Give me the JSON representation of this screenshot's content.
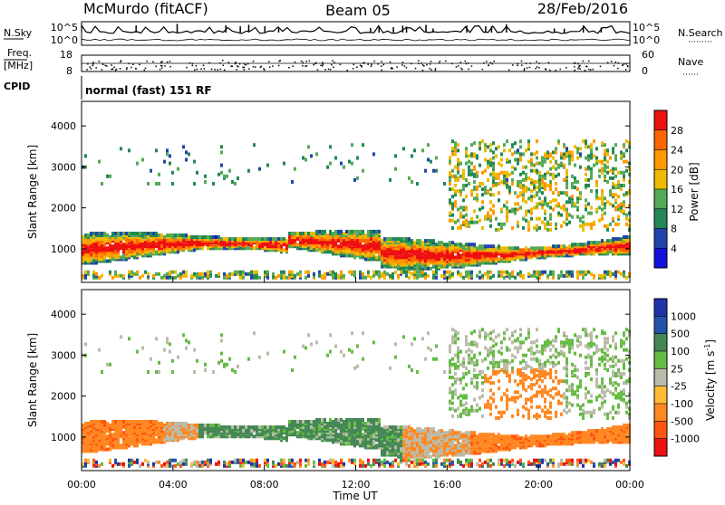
{
  "header": {
    "station": "McMurdo (fitACF)",
    "beam": "Beam 05",
    "date": "28/Feb/2016"
  },
  "status_panel": {
    "left_label_top": "N.Sky",
    "left_label_mid_1": "Freq.",
    "left_label_mid_2": "[MHz]",
    "left_label_bottom": "CPID",
    "right_label_top": "N.Search",
    "right_label_mid": "Nave",
    "left_ticks_top": [
      "10^5",
      "10^0"
    ],
    "right_ticks_top": [
      "10^5",
      "10^0"
    ],
    "left_ticks_freq": [
      "18",
      "8"
    ],
    "right_ticks_nave": [
      "60",
      "0"
    ],
    "cpid_text": "normal (fast) 151 RF"
  },
  "chart_data": [
    {
      "type": "heatmap",
      "name": "power",
      "ylabel": "Slant Range [km]",
      "y_ticks": [
        1000,
        2000,
        3000,
        4000
      ],
      "ylim": [
        180,
        4600
      ],
      "colorbar": {
        "label": "Power [dB]",
        "ticks": [
          "28",
          "24",
          "20",
          "16",
          "12",
          "8",
          "4"
        ],
        "colors": [
          "#ee1111",
          "#ff6600",
          "#ff9900",
          "#eebb00",
          "#55aa55",
          "#228855",
          "#2244aa",
          "#1111dd"
        ]
      }
    },
    {
      "type": "heatmap",
      "name": "velocity",
      "ylabel": "Slant Range [km]",
      "xlabel": "Time UT",
      "y_ticks": [
        1000,
        2000,
        3000,
        4000
      ],
      "ylim": [
        180,
        4600
      ],
      "x_ticks": [
        "00:00",
        "04:00",
        "08:00",
        "12:00",
        "16:00",
        "20:00",
        "00:00"
      ],
      "xlim_hours": [
        0,
        24
      ],
      "colorbar": {
        "label": "Velocity [m s",
        "label_sup": "-1",
        "label_end": "]",
        "ticks": [
          "1000",
          "500",
          "100",
          "25",
          "-25",
          "-100",
          "-500",
          "-1000"
        ],
        "colors": [
          "#2233aa",
          "#2255aa",
          "#448855",
          "#66bb44",
          "#bbbbaa",
          "#ffbb33",
          "#ff8822",
          "#ff5511",
          "#ee1111"
        ]
      }
    }
  ]
}
